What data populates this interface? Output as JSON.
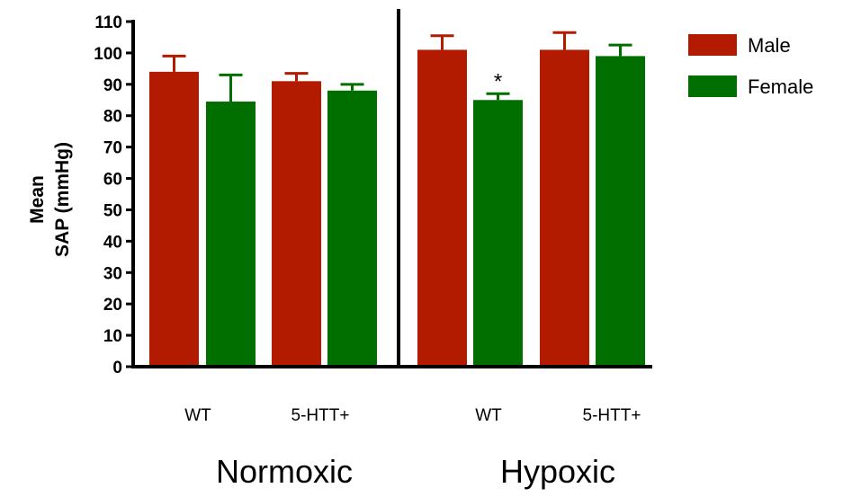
{
  "chart_data": {
    "type": "bar",
    "ylabel_line1": "Mean",
    "ylabel_line2": "SAP (mmHg)",
    "ylim": [
      0,
      110
    ],
    "yticks": [
      0,
      10,
      20,
      30,
      40,
      50,
      60,
      70,
      80,
      90,
      100,
      110
    ],
    "groups": [
      {
        "label": "Normoxic",
        "categories": [
          {
            "label": "WT",
            "male": 94,
            "male_err": 5,
            "female": 84.5,
            "female_err": 8.5
          },
          {
            "label": "5-HTT+",
            "male": 91,
            "male_err": 2.5,
            "female": 88,
            "female_err": 2
          }
        ]
      },
      {
        "label": "Hypoxic",
        "categories": [
          {
            "label": "WT",
            "male": 101,
            "male_err": 4.5,
            "female": 85,
            "female_err": 2,
            "female_annotation": "*"
          },
          {
            "label": "5-HTT+",
            "male": 101,
            "male_err": 5.5,
            "female": 99,
            "female_err": 3.5
          }
        ]
      }
    ],
    "series": [
      {
        "name": "Male",
        "color": "#B21B00"
      },
      {
        "name": "Female",
        "color": "#016F00"
      }
    ],
    "legend_position": "top-right",
    "grid": false
  }
}
